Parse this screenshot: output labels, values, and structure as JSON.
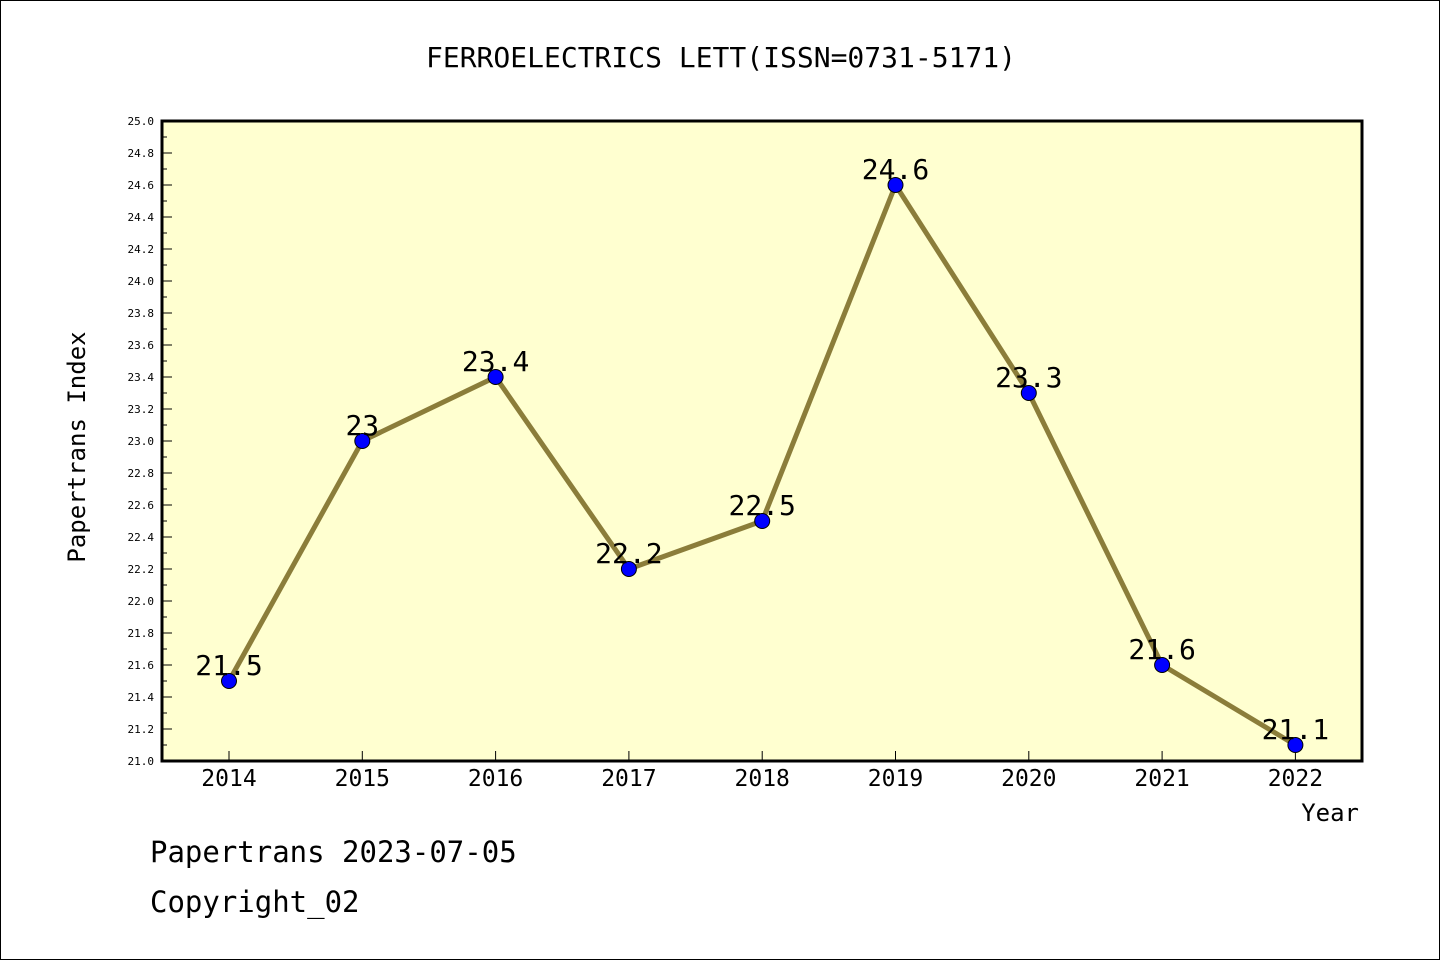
{
  "colors": {
    "plot_background": "#ffffd0",
    "line": "#8b7d3a",
    "marker": "#0000ff"
  },
  "chart_data": {
    "type": "line",
    "title": "FERROELECTRICS LETT(ISSN=0731-5171)",
    "xlabel": "Year",
    "ylabel": "Papertrans Index",
    "categories": [
      "2014",
      "2015",
      "2016",
      "2017",
      "2018",
      "2019",
      "2020",
      "2021",
      "2022"
    ],
    "series": [
      {
        "values": [
          21.5,
          23,
          23.4,
          22.2,
          22.5,
          24.6,
          23.3,
          21.6,
          21.1
        ],
        "labels": [
          "21.5",
          "23",
          "23.4",
          "22.2",
          "22.5",
          "24.6",
          "23.3",
          "21.6",
          "21.1"
        ]
      }
    ],
    "ylim": [
      21.0,
      25.0
    ],
    "yticks": [
      "21.0",
      "21.2",
      "21.4",
      "21.6",
      "21.8",
      "22.0",
      "22.2",
      "22.4",
      "22.6",
      "22.8",
      "23.0",
      "23.2",
      "23.4",
      "23.6",
      "23.8",
      "24.0",
      "24.2",
      "24.4",
      "24.6",
      "24.8",
      "25.0"
    ],
    "grid": false,
    "legend": "none"
  },
  "footer": {
    "line1": "Papertrans 2023-07-05",
    "line2": "Copyright_02"
  }
}
